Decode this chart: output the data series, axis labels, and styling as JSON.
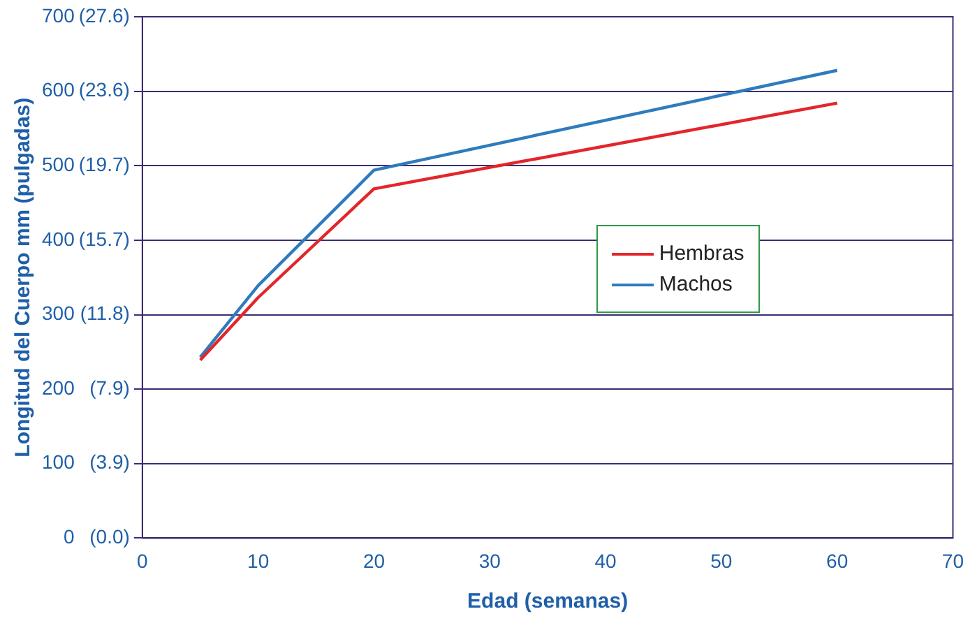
{
  "chart_data": {
    "type": "line",
    "xlabel": "Edad (semanas)",
    "ylabel": "Longitud del Cuerpo mm (pulgadas)",
    "x": [
      5,
      10,
      20,
      60
    ],
    "series": [
      {
        "name": "Hembras",
        "color": "#e3262b",
        "values": [
          239,
          323,
          469,
          584
        ]
      },
      {
        "name": "Machos",
        "color": "#2f7bbd",
        "values": [
          243,
          339,
          494,
          628
        ]
      }
    ],
    "xlim": [
      0,
      70
    ],
    "xticks": [
      0,
      10,
      20,
      30,
      40,
      50,
      60,
      70
    ],
    "ylim": [
      0,
      700
    ],
    "yticks": [
      0,
      100,
      200,
      300,
      400,
      500,
      600,
      700
    ],
    "y2lim": [
      0,
      27.56
    ],
    "y2ticks": [
      {
        "value": 0,
        "label": "(0.0)"
      },
      {
        "value": 3.94,
        "label": "(3.9)"
      },
      {
        "value": 7.87,
        "label": "(7.9)"
      },
      {
        "value": 11.81,
        "label": "(11.8)"
      },
      {
        "value": 15.75,
        "label": "(15.7)"
      },
      {
        "value": 19.69,
        "label": "(19.7)"
      },
      {
        "value": 23.62,
        "label": "(23.6)"
      },
      {
        "value": 27.56,
        "label": "(27.6)"
      }
    ],
    "grid": "y",
    "legend": "right",
    "marker": "none",
    "line_style": "solid"
  }
}
